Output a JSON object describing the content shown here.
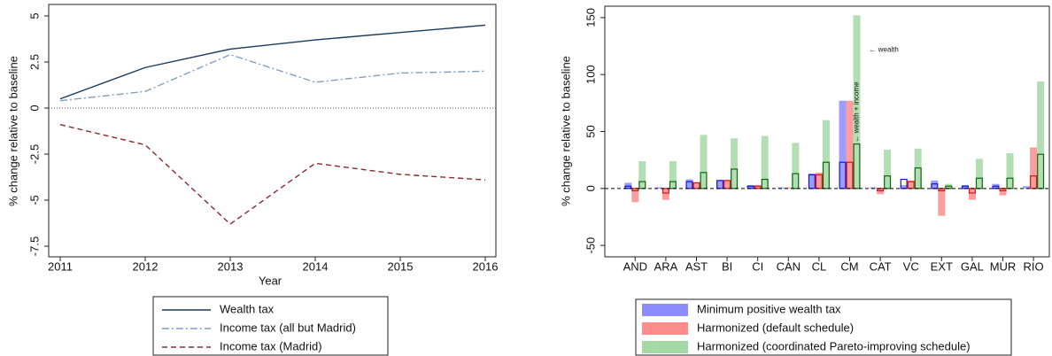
{
  "chart_data": [
    {
      "type": "line",
      "xlabel": "Year",
      "ylabel": "% change relative to baseline",
      "x": [
        2011,
        2012,
        2013,
        2014,
        2015,
        2016
      ],
      "xlim": [
        2011,
        2016
      ],
      "xticks": [
        2011,
        2012,
        2013,
        2014,
        2015,
        2016
      ],
      "ylim": [
        -7.5,
        5
      ],
      "yticks": [
        5,
        2.5,
        0,
        -2.5,
        -5,
        -7.5
      ],
      "zero_line": "dotted",
      "series": [
        {
          "name": "Wealth tax",
          "color": "#1a3a5c",
          "dash": "solid",
          "values": [
            0.5,
            2.2,
            3.2,
            3.7,
            4.1,
            4.5
          ]
        },
        {
          "name": "Income tax (all but Madrid)",
          "color": "#7f9fc0",
          "dash": "dashdot",
          "values": [
            0.4,
            0.9,
            2.9,
            1.4,
            1.9,
            2.0
          ]
        },
        {
          "name": "Income tax (Madrid)",
          "color": "#8b2a2a",
          "dash": "dash",
          "values": [
            -0.9,
            -2.0,
            -6.3,
            -3.0,
            -3.6,
            -3.9
          ]
        }
      ]
    },
    {
      "type": "bar",
      "ylabel": "% change relative to baseline",
      "categories": [
        "AND",
        "ARA",
        "AST",
        "BI",
        "CI",
        "CAN",
        "CL",
        "CM",
        "CAT",
        "VC",
        "EXT",
        "GAL",
        "MUR",
        "RIO"
      ],
      "ylim": [
        -60,
        160
      ],
      "yticks": [
        -50,
        0,
        50,
        100,
        150
      ],
      "zero_line": "dashed",
      "series": [
        {
          "name": "Minimum positive wealth tax",
          "color": "#8c8cff",
          "outline_color": "#1010ee",
          "values": [
            5,
            1,
            8,
            7,
            3,
            1,
            13,
            77,
            1,
            3,
            7,
            3,
            4,
            2
          ],
          "outline_values": [
            2,
            0,
            6,
            7,
            2,
            0,
            12,
            23,
            0,
            8,
            4,
            2,
            2,
            0
          ]
        },
        {
          "name": "Harmonized (default schedule)",
          "color": "#ff8c8c",
          "outline_color": "#e01010",
          "values": [
            -12,
            -10,
            5,
            7,
            3,
            1,
            14,
            77,
            -5,
            7,
            -24,
            -10,
            -6,
            36
          ],
          "outline_values": [
            -2,
            -4,
            5,
            7,
            2,
            0,
            12,
            23,
            -2,
            6,
            -2,
            -4,
            -2,
            11
          ]
        },
        {
          "name": "Harmonized (coordinated Pareto-improving schedule)",
          "color": "#a6d8a6",
          "outline_color": "#0a6a0a",
          "values": [
            24,
            24,
            47,
            44,
            46,
            40,
            60,
            152,
            34,
            35,
            4,
            26,
            31,
            94
          ],
          "outline_values": [
            6,
            6,
            14,
            17,
            8,
            13,
            23,
            39,
            11,
            18,
            2,
            9,
            9,
            30
          ]
        }
      ],
      "annotations": [
        {
          "text": "← wealth"
        },
        {
          "text": "← wealth + income"
        }
      ]
    }
  ]
}
